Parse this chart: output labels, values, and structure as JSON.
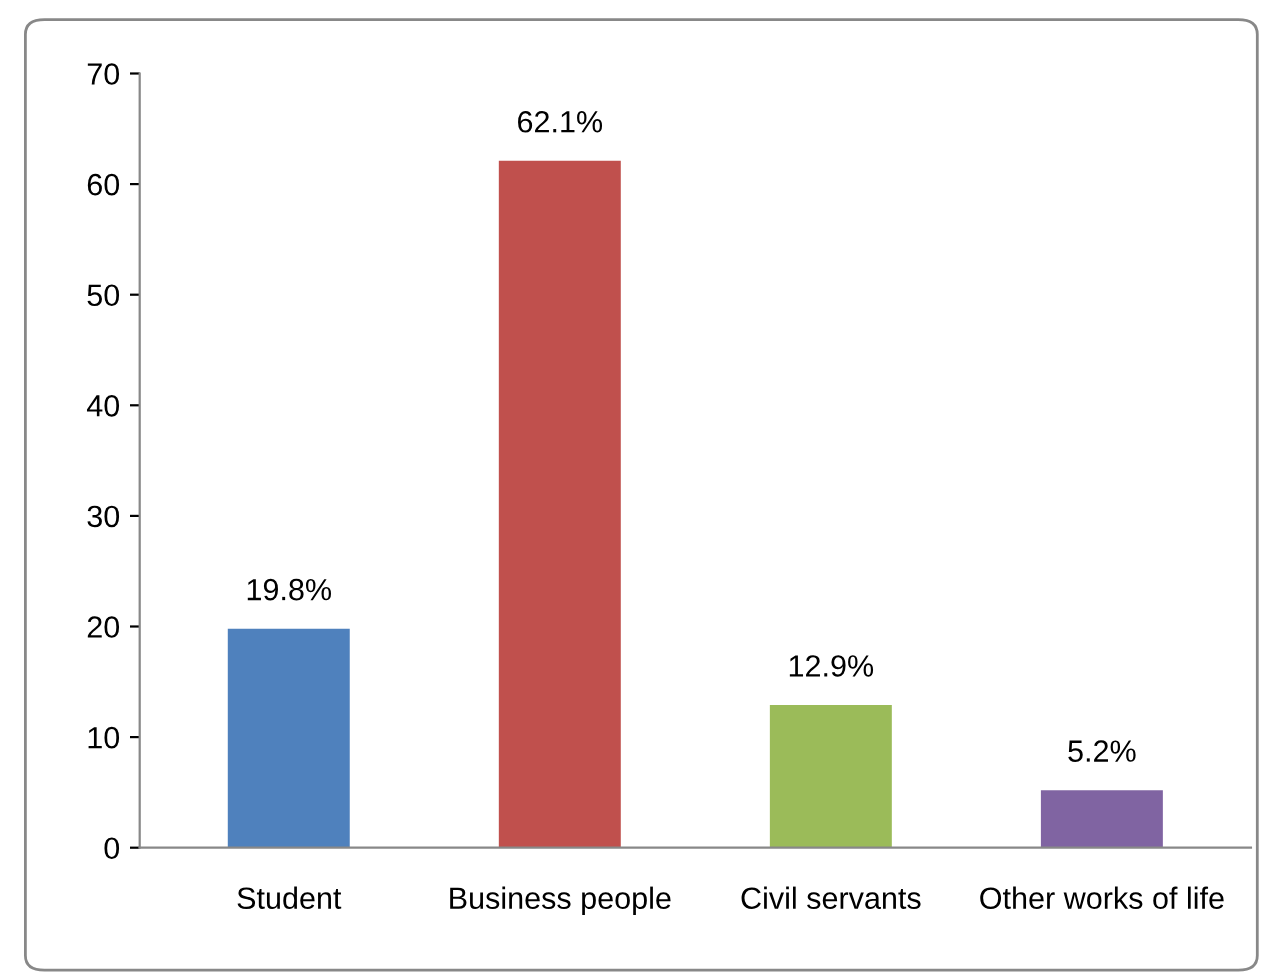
{
  "chart_data": {
    "type": "bar",
    "categories": [
      "Student",
      "Business people",
      "Civil servants",
      "Other works of life"
    ],
    "values": [
      19.8,
      62.1,
      12.9,
      5.2
    ],
    "colors": [
      "#4f81bd",
      "#c0504d",
      "#9bbb59",
      "#8064a2"
    ],
    "value_labels": [
      "19.8%",
      "62.1%",
      "12.9%",
      "5.2%"
    ],
    "ylim": [
      0,
      70
    ],
    "yticks": [
      0,
      10,
      20,
      30,
      40,
      50,
      60,
      70
    ],
    "grid": false,
    "legend": false
  }
}
